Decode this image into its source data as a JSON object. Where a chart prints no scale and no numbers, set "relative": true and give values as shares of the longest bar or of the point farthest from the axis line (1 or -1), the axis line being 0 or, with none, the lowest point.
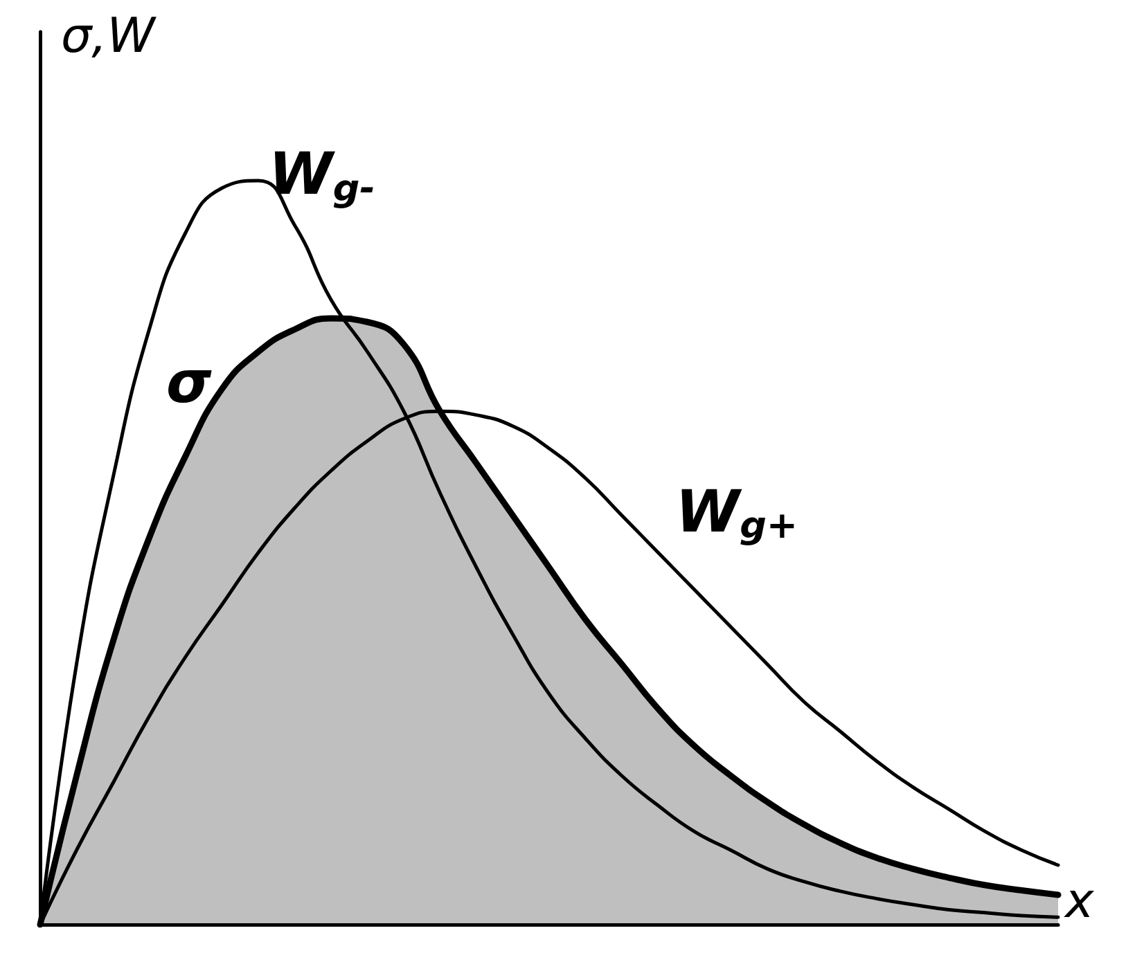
{
  "chart_data": {
    "type": "line",
    "relative": true,
    "xlabel": "x",
    "ylabel": "σ,W",
    "grid": false,
    "legend": false,
    "marker": "none",
    "line_style": "solid",
    "categories": [
      null,
      null,
      null,
      null,
      null,
      null,
      null,
      null,
      null,
      null,
      null,
      null,
      null,
      null,
      null,
      null,
      null,
      null,
      null,
      null,
      null,
      null,
      null,
      null,
      null,
      null,
      null,
      null,
      null
    ],
    "series": [
      {
        "name": "W$_{g-}$",
        "color": "#000000",
        "values": [
          0,
          0.35,
          0.6,
          0.8,
          0.93,
          0.99,
          1,
          0.94,
          0.84,
          0.77,
          0.69,
          0.58,
          0.48,
          0.39,
          0.31,
          0.25,
          0.2,
          0.16,
          0.125,
          0.1,
          0.075,
          0.058,
          0.045,
          0.035,
          0.027,
          0.02,
          0.016,
          0.012,
          0.01
        ]
      },
      {
        "name": "σ",
        "type": "area",
        "color": "#000000",
        "values": [
          0,
          0.2,
          0.38,
          0.52,
          0.63,
          0.72,
          0.77,
          0.8,
          0.815,
          0.81,
          0.78,
          0.69,
          0.62,
          0.55,
          0.48,
          0.41,
          0.35,
          0.29,
          0.24,
          0.2,
          0.165,
          0.135,
          0.11,
          0.09,
          0.075,
          0.063,
          0.053,
          0.046,
          0.04
        ]
      },
      {
        "name": "W$_{g+}$",
        "color": "#000000",
        "values": [
          0,
          0.1,
          0.19,
          0.28,
          0.36,
          0.43,
          0.5,
          0.56,
          0.61,
          0.65,
          0.68,
          0.69,
          0.685,
          0.67,
          0.64,
          0.6,
          0.55,
          0.5,
          0.45,
          0.4,
          0.35,
          0.3,
          0.26,
          0.22,
          0.185,
          0.155,
          0.125,
          0.1,
          0.08
        ]
      }
    ]
  }
}
